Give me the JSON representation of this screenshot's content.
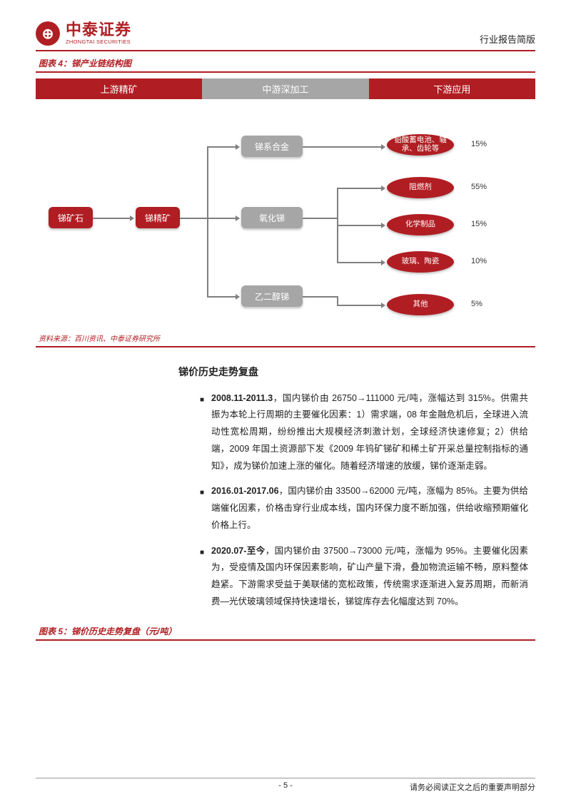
{
  "header": {
    "logo_glyph": "⊕",
    "logo_cn": "中泰证券",
    "logo_en": "ZHONGTAI SECURITIES",
    "right": "行业报告简版"
  },
  "figure4": {
    "title": "图表 4：锑产业链结构图",
    "stages": {
      "upstream": "上游精矿",
      "midstream": "中游深加工",
      "downstream": "下游应用"
    },
    "nodes": {
      "ore": "锑矿石",
      "concentrate": "锑精矿",
      "alloy": "锑系合金",
      "oxide": "氧化锑",
      "glycol": "乙二醇锑",
      "battery": "铅酸蓄电池、轴承、齿轮等",
      "flame": "阻燃剂",
      "chemical": "化学制品",
      "glass": "玻璃、陶瓷",
      "other": "其他"
    },
    "percents": {
      "p1": "15%",
      "p2": "55%",
      "p3": "15%",
      "p4": "10%",
      "p5": "5%"
    },
    "source": "资料来源：百川资讯、中泰证券研究所",
    "styling": {
      "stage_colors": [
        "#b01e23",
        "#a6a6a6",
        "#b01e23"
      ],
      "red_node_color": "#b01e23",
      "gray_node_color": "#a6a6a6",
      "connector_color": "#7f7f7f",
      "text_color": "#ffffff",
      "node_fontsize": 12,
      "stage_fontsize": 13
    }
  },
  "section": {
    "title": "锑价历史走势复盘",
    "bullets": [
      "<b>2008.11-2011.3</b>，国内锑价由 26750→111000 元/吨，涨幅达到 315%。供需共振为本轮上行周期的主要催化因素：1）需求端，08 年金融危机后，全球进入流动性宽松周期，纷纷推出大规模经济刺激计划，全球经济快速修复；2）供给端，2009 年国土资源部下发《2009 年钨矿锑矿和稀土矿开采总量控制指标的通知》，成为锑价加速上涨的催化。随着经济增速的放缓，锑价逐渐走弱。",
      "<b>2016.01-2017.06</b>，国内锑价由 33500→62000 元/吨，涨幅为 85%。主要为供给端催化因素，价格击穿行业成本线，国内环保力度不断加强，供给收缩预期催化价格上行。",
      "<b>2020.07-至今</b>，国内锑价由 37500→73000 元/吨，涨幅为 95%。主要催化因素为，受疫情及国内环保因素影响，矿山产量下滑，叠加物流运输不畅，原料整体趋紧。下游需求受益于美联储的宽松政策，传统需求逐渐进入复苏周期，而新消费—光伏玻璃领域保持快速增长，锑锭库存去化幅度达到 70%。"
    ]
  },
  "figure5": {
    "title": "图表 5：锑价历史走势复盘（元/吨）"
  },
  "footer": {
    "page": "- 5 -",
    "disclaimer": "请务必阅读正文之后的重要声明部分"
  }
}
